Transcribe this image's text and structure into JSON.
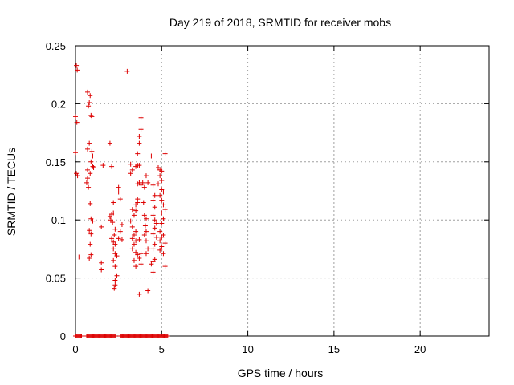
{
  "chart_data": {
    "type": "scatter",
    "title": "Day 219 of 2018, SRMTID for receiver mobs",
    "xlabel": "GPS time / hours",
    "ylabel": "SRMTID / TECUs",
    "xlim": [
      0,
      24
    ],
    "ylim": [
      0,
      0.25
    ],
    "xticks": [
      0,
      5,
      10,
      15,
      20
    ],
    "yticks": [
      0,
      0.05,
      0.1,
      0.15,
      0.2,
      0.25
    ],
    "ytick_labels": [
      "0",
      "0.05",
      "0.1",
      "0.15",
      "0.2",
      "0.25"
    ],
    "grid": true,
    "marker": "+",
    "color": "#dd0000",
    "points": [
      [
        0.05,
        0.233
      ],
      [
        0.1,
        0.229
      ],
      [
        0.0,
        0.189
      ],
      [
        0.08,
        0.184
      ],
      [
        0.0,
        0.158
      ],
      [
        0.05,
        0.14
      ],
      [
        0.12,
        0.138
      ],
      [
        0.2,
        0.068
      ],
      [
        0.7,
        0.21
      ],
      [
        0.8,
        0.201
      ],
      [
        0.75,
        0.198
      ],
      [
        0.85,
        0.207
      ],
      [
        0.9,
        0.19
      ],
      [
        0.95,
        0.189
      ],
      [
        0.8,
        0.166
      ],
      [
        0.7,
        0.161
      ],
      [
        0.95,
        0.159
      ],
      [
        1.0,
        0.155
      ],
      [
        0.9,
        0.15
      ],
      [
        1.0,
        0.146
      ],
      [
        1.05,
        0.145
      ],
      [
        0.85,
        0.14
      ],
      [
        0.7,
        0.136
      ],
      [
        0.65,
        0.132
      ],
      [
        0.75,
        0.128
      ],
      [
        0.85,
        0.114
      ],
      [
        0.9,
        0.101
      ],
      [
        1.0,
        0.099
      ],
      [
        0.8,
        0.091
      ],
      [
        0.9,
        0.088
      ],
      [
        0.85,
        0.079
      ],
      [
        0.9,
        0.07
      ],
      [
        0.8,
        0.067
      ],
      [
        0.7,
        0.143
      ],
      [
        1.6,
        0.147
      ],
      [
        1.5,
        0.094
      ],
      [
        1.5,
        0.063
      ],
      [
        1.5,
        0.057
      ],
      [
        2.0,
        0.166
      ],
      [
        2.1,
        0.146
      ],
      [
        2.0,
        0.103
      ],
      [
        2.1,
        0.105
      ],
      [
        2.05,
        0.1
      ],
      [
        2.15,
        0.098
      ],
      [
        2.2,
        0.106
      ],
      [
        2.3,
        0.092
      ],
      [
        2.25,
        0.087
      ],
      [
        2.1,
        0.084
      ],
      [
        2.2,
        0.081
      ],
      [
        2.3,
        0.079
      ],
      [
        2.2,
        0.075
      ],
      [
        2.3,
        0.071
      ],
      [
        2.4,
        0.069
      ],
      [
        2.2,
        0.065
      ],
      [
        2.3,
        0.06
      ],
      [
        2.4,
        0.052
      ],
      [
        2.3,
        0.048
      ],
      [
        2.3,
        0.044
      ],
      [
        2.25,
        0.041
      ],
      [
        2.5,
        0.128
      ],
      [
        2.5,
        0.124
      ],
      [
        2.6,
        0.118
      ],
      [
        2.7,
        0.096
      ],
      [
        2.6,
        0.09
      ],
      [
        2.5,
        0.084
      ],
      [
        2.7,
        0.083
      ],
      [
        2.2,
        0.115
      ],
      [
        3.0,
        0.228
      ],
      [
        3.2,
        0.148
      ],
      [
        3.3,
        0.143
      ],
      [
        3.2,
        0.14
      ],
      [
        3.3,
        0.109
      ],
      [
        3.4,
        0.104
      ],
      [
        3.2,
        0.099
      ],
      [
        3.3,
        0.094
      ],
      [
        3.5,
        0.09
      ],
      [
        3.4,
        0.087
      ],
      [
        3.3,
        0.084
      ],
      [
        3.5,
        0.082
      ],
      [
        3.4,
        0.079
      ],
      [
        3.3,
        0.075
      ],
      [
        3.5,
        0.072
      ],
      [
        3.6,
        0.07
      ],
      [
        3.4,
        0.065
      ],
      [
        3.5,
        0.06
      ],
      [
        3.6,
        0.115
      ],
      [
        3.5,
        0.113
      ],
      [
        3.6,
        0.118
      ],
      [
        3.5,
        0.108
      ],
      [
        3.7,
        0.132
      ],
      [
        3.6,
        0.131
      ],
      [
        3.8,
        0.13
      ],
      [
        3.5,
        0.146
      ],
      [
        3.6,
        0.147
      ],
      [
        3.7,
        0.147
      ],
      [
        3.6,
        0.157
      ],
      [
        3.7,
        0.166
      ],
      [
        3.7,
        0.172
      ],
      [
        3.8,
        0.178
      ],
      [
        3.8,
        0.188
      ],
      [
        3.7,
        0.083
      ],
      [
        3.8,
        0.071
      ],
      [
        3.7,
        0.067
      ],
      [
        3.8,
        0.062
      ],
      [
        3.7,
        0.036
      ],
      [
        3.9,
        0.132
      ],
      [
        4.0,
        0.128
      ],
      [
        4.1,
        0.138
      ],
      [
        4.2,
        0.132
      ],
      [
        3.95,
        0.115
      ],
      [
        4.0,
        0.104
      ],
      [
        4.1,
        0.101
      ],
      [
        4.05,
        0.095
      ],
      [
        4.1,
        0.09
      ],
      [
        4.0,
        0.087
      ],
      [
        4.1,
        0.082
      ],
      [
        4.2,
        0.075
      ],
      [
        4.1,
        0.071
      ],
      [
        4.2,
        0.039
      ],
      [
        4.4,
        0.155
      ],
      [
        4.5,
        0.13
      ],
      [
        4.6,
        0.121
      ],
      [
        4.5,
        0.117
      ],
      [
        4.6,
        0.111
      ],
      [
        4.5,
        0.104
      ],
      [
        4.6,
        0.1
      ],
      [
        4.7,
        0.097
      ],
      [
        4.6,
        0.093
      ],
      [
        4.5,
        0.088
      ],
      [
        4.7,
        0.085
      ],
      [
        4.6,
        0.079
      ],
      [
        4.5,
        0.075
      ],
      [
        4.6,
        0.066
      ],
      [
        4.5,
        0.064
      ],
      [
        4.4,
        0.062
      ],
      [
        4.5,
        0.055
      ],
      [
        4.8,
        0.145
      ],
      [
        4.9,
        0.143
      ],
      [
        5.0,
        0.142
      ],
      [
        4.9,
        0.138
      ],
      [
        5.0,
        0.134
      ],
      [
        4.8,
        0.131
      ],
      [
        5.0,
        0.126
      ],
      [
        5.1,
        0.124
      ],
      [
        4.9,
        0.121
      ],
      [
        5.0,
        0.117
      ],
      [
        5.1,
        0.113
      ],
      [
        5.2,
        0.109
      ],
      [
        5.0,
        0.106
      ],
      [
        5.1,
        0.101
      ],
      [
        5.0,
        0.097
      ],
      [
        4.9,
        0.09
      ],
      [
        5.1,
        0.087
      ],
      [
        5.0,
        0.085
      ],
      [
        4.9,
        0.082
      ],
      [
        5.2,
        0.08
      ],
      [
        5.0,
        0.077
      ],
      [
        4.9,
        0.074
      ],
      [
        5.1,
        0.071
      ],
      [
        5.2,
        0.06
      ],
      [
        5.2,
        0.157
      ]
    ],
    "zero_row": {
      "y": 0,
      "x_ranges": [
        [
          0.0,
          0.35
        ],
        [
          0.65,
          2.3
        ],
        [
          2.6,
          5.35
        ]
      ],
      "x_step": 0.05
    }
  }
}
